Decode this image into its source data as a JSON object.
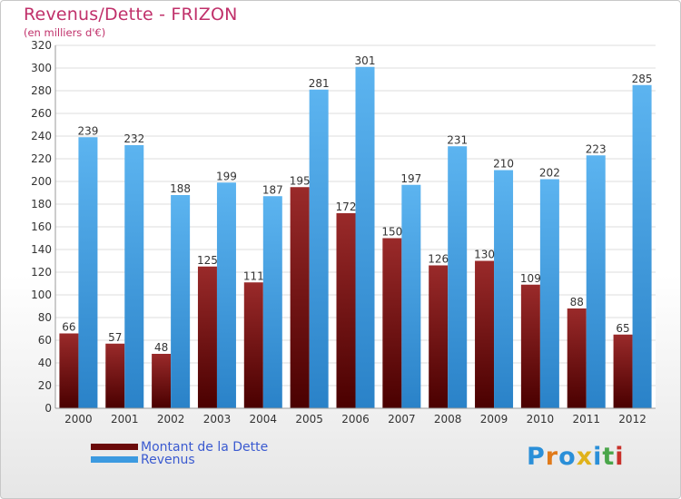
{
  "chart_data": {
    "type": "bar",
    "title": "Revenus/Dette - FRIZON",
    "subtitle": "(en milliers d'€)",
    "categories": [
      "2000",
      "2001",
      "2002",
      "2003",
      "2004",
      "2005",
      "2006",
      "2007",
      "2008",
      "2009",
      "2010",
      "2011",
      "2012"
    ],
    "series": [
      {
        "name": "Montant de la Dette",
        "color": "#7a1414",
        "values": [
          66,
          57,
          48,
          125,
          111,
          195,
          172,
          150,
          126,
          130,
          109,
          88,
          65
        ]
      },
      {
        "name": "Revenus",
        "color": "#4aa6e8",
        "values": [
          239,
          232,
          188,
          199,
          187,
          281,
          301,
          197,
          231,
          210,
          202,
          223,
          285
        ]
      }
    ],
    "ylim": [
      0,
      320
    ],
    "ytick_step": 20,
    "grid": true,
    "legend": "bottom-left"
  },
  "legend": {
    "debt_label": "Montant de la Dette",
    "revenue_label": "Revenus"
  },
  "logo": {
    "letters": [
      "P",
      "r",
      "o",
      "x",
      "i",
      "t",
      "i"
    ],
    "colors": [
      "#2a8fd8",
      "#e07a1a",
      "#2a8fd8",
      "#e0b21a",
      "#2a8fd8",
      "#4aa64a",
      "#c8302a"
    ]
  }
}
